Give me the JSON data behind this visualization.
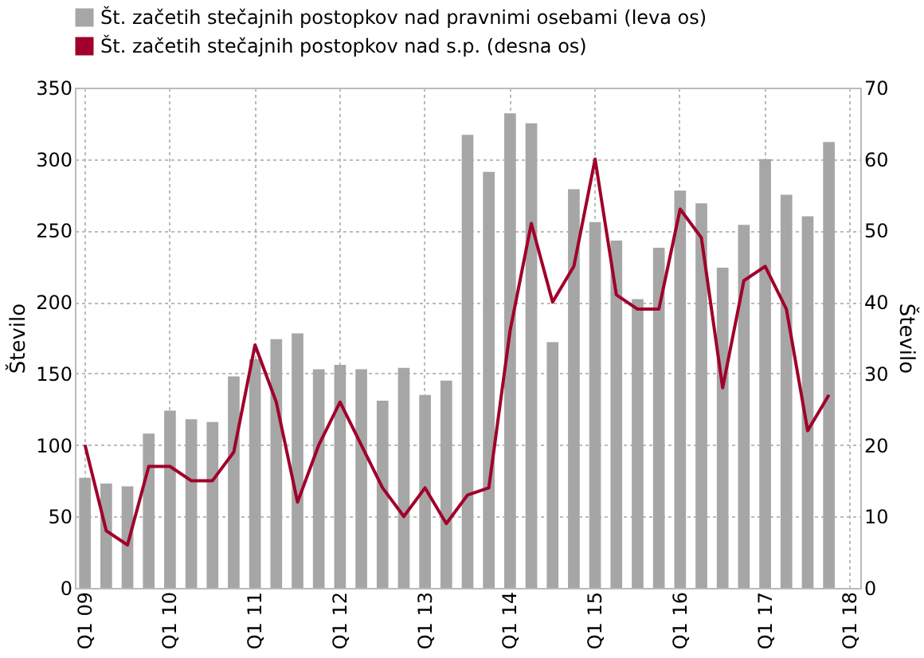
{
  "chart_data": {
    "type": "bar",
    "ylabel": "Število",
    "y2label": "Število",
    "categories": [
      "Q1 09",
      null,
      null,
      null,
      "Q1 10",
      null,
      null,
      null,
      "Q1 11",
      null,
      null,
      null,
      "Q1 12",
      null,
      null,
      null,
      "Q1 13",
      null,
      null,
      null,
      "Q1 14",
      null,
      null,
      null,
      "Q1 15",
      null,
      null,
      null,
      "Q1 16",
      null,
      null,
      null,
      "Q1 17",
      null,
      null,
      null,
      "Q1 18"
    ],
    "series": [
      {
        "name": "Št. začetih stečajnih postopkov nad pravnimi osebami (leva os)",
        "color": "#a6a6a6",
        "values": [
          77,
          73,
          71,
          108,
          124,
          118,
          116,
          148,
          160,
          174,
          178,
          153,
          156,
          153,
          131,
          154,
          135,
          145,
          317,
          291,
          332,
          325,
          172,
          279,
          256,
          243,
          202,
          238,
          278,
          269,
          224,
          254,
          300,
          275,
          260,
          312,
          null
        ]
      },
      {
        "name": "Št. začetih stečajnih postopkov nad s.p. (desna os)",
        "type": "line",
        "axis": "y2",
        "color": "#a0002a",
        "values": [
          20,
          8,
          6,
          17,
          17,
          15,
          15,
          19,
          34,
          26,
          12,
          20,
          26,
          20,
          14,
          10,
          14,
          9,
          13,
          14,
          36,
          51,
          40,
          45,
          60,
          41,
          39,
          39,
          53,
          49,
          28,
          43,
          45,
          39,
          22,
          27,
          null
        ]
      }
    ],
    "ylim": [
      0,
      350
    ],
    "yticks": [
      0,
      50,
      100,
      150,
      200,
      250,
      300,
      350
    ],
    "y2lim": [
      0,
      70
    ],
    "y2ticks": [
      0,
      10,
      20,
      30,
      40,
      50,
      60,
      70
    ],
    "grid": true,
    "legend": "top",
    "marker": "none",
    "line_style": "solid"
  }
}
